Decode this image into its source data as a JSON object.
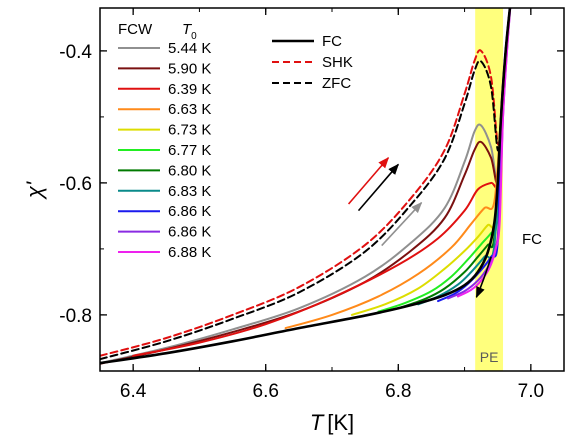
{
  "chart_data": {
    "type": "line",
    "xlabel_symbol": "T",
    "xlabel_unit": "[K]",
    "ylabel": "χ'",
    "xlim": [
      6.35,
      7.05
    ],
    "ylim": [
      -0.885,
      -0.335
    ],
    "xticks": [
      6.4,
      6.6,
      6.8,
      7.0
    ],
    "yticks": [
      -0.8,
      -0.6,
      -0.4
    ],
    "xtick_labels": [
      "6.4",
      "6.6",
      "6.8",
      "7.0"
    ],
    "ytick_labels": [
      "-0.8",
      "-0.6",
      "-0.4"
    ],
    "grid": false,
    "pe_band": {
      "x_range": [
        6.916,
        6.958
      ],
      "label": "PE",
      "color": "#ffff66"
    },
    "fcw_legend": {
      "header_left": "FCW",
      "header_right_symbol": "T",
      "header_right_sub": "0",
      "entries": [
        {
          "label": "5.44 K",
          "color": "#909090"
        },
        {
          "label": "5.90 K",
          "color": "#7a1010"
        },
        {
          "label": "6.39 K",
          "color": "#e01010"
        },
        {
          "label": "6.63 K",
          "color": "#ff8a1a"
        },
        {
          "label": "6.73 K",
          "color": "#dddd00"
        },
        {
          "label": "6.77 K",
          "color": "#22ee22"
        },
        {
          "label": "6.80 K",
          "color": "#007a00"
        },
        {
          "label": "6.83 K",
          "color": "#0a8a8a"
        },
        {
          "label": "6.86 K",
          "color": "#1a1aee"
        },
        {
          "label": "6.86 K",
          "color": "#8a2be2"
        },
        {
          "label": "6.88 K",
          "color": "#ee22ee"
        }
      ]
    },
    "protocol_legend": [
      {
        "label": "FC",
        "color": "#000000",
        "dash": "solid"
      },
      {
        "label": "SHK",
        "color": "#e01010",
        "dash": "dashed"
      },
      {
        "label": "ZFC",
        "color": "#000000",
        "dash": "dashed"
      }
    ],
    "fc_annotation": "FC",
    "series": [
      {
        "name": "FC",
        "color": "#000000",
        "dash": "solid",
        "width": 2.6,
        "x": [
          6.35,
          6.45,
          6.55,
          6.65,
          6.75,
          6.82,
          6.87,
          6.9,
          6.92,
          6.935,
          6.945,
          6.95,
          6.955,
          6.962,
          6.97
        ],
        "y": [
          -0.873,
          -0.858,
          -0.84,
          -0.82,
          -0.801,
          -0.785,
          -0.77,
          -0.755,
          -0.735,
          -0.705,
          -0.66,
          -0.6,
          -0.5,
          -0.4,
          -0.32
        ]
      },
      {
        "name": "SHK",
        "color": "#e01010",
        "dash": "dashed",
        "width": 2,
        "x": [
          6.35,
          6.45,
          6.55,
          6.65,
          6.75,
          6.82,
          6.87,
          6.9,
          6.915,
          6.925,
          6.94,
          6.95,
          6.955,
          6.962,
          6.97
        ],
        "y": [
          -0.862,
          -0.835,
          -0.8,
          -0.758,
          -0.694,
          -0.622,
          -0.55,
          -0.465,
          -0.415,
          -0.4,
          -0.44,
          -0.54,
          -0.5,
          -0.4,
          -0.32
        ]
      },
      {
        "name": "ZFC",
        "color": "#000000",
        "dash": "dashed",
        "width": 2,
        "x": [
          6.35,
          6.45,
          6.55,
          6.65,
          6.75,
          6.82,
          6.87,
          6.9,
          6.915,
          6.925,
          6.94,
          6.95,
          6.955,
          6.962,
          6.97
        ],
        "y": [
          -0.867,
          -0.84,
          -0.806,
          -0.766,
          -0.704,
          -0.632,
          -0.563,
          -0.48,
          -0.43,
          -0.416,
          -0.455,
          -0.55,
          -0.5,
          -0.4,
          -0.32
        ]
      },
      {
        "name": "5.44 K",
        "color": "#909090",
        "dash": "solid",
        "width": 2,
        "x": [
          6.35,
          6.45,
          6.55,
          6.65,
          6.75,
          6.82,
          6.87,
          6.9,
          6.915,
          6.925,
          6.94,
          6.95,
          6.955,
          6.962,
          6.97
        ],
        "y": [
          -0.873,
          -0.85,
          -0.822,
          -0.79,
          -0.742,
          -0.69,
          -0.638,
          -0.568,
          -0.522,
          -0.513,
          -0.546,
          -0.6,
          -0.5,
          -0.4,
          -0.32
        ]
      },
      {
        "name": "5.90 K",
        "color": "#7a1010",
        "dash": "solid",
        "width": 2,
        "x": [
          6.35,
          6.45,
          6.55,
          6.65,
          6.75,
          6.82,
          6.87,
          6.9,
          6.915,
          6.925,
          6.94,
          6.95,
          6.955,
          6.962,
          6.97
        ],
        "y": [
          -0.874,
          -0.852,
          -0.826,
          -0.795,
          -0.75,
          -0.702,
          -0.653,
          -0.588,
          -0.55,
          -0.538,
          -0.562,
          -0.6,
          -0.5,
          -0.4,
          -0.32
        ]
      },
      {
        "name": "6.39 K",
        "color": "#e01010",
        "dash": "solid",
        "width": 2,
        "x": [
          6.4,
          6.5,
          6.6,
          6.7,
          6.8,
          6.86,
          6.9,
          6.92,
          6.94,
          6.95,
          6.955,
          6.962,
          6.97
        ],
        "y": [
          -0.862,
          -0.842,
          -0.814,
          -0.774,
          -0.724,
          -0.684,
          -0.642,
          -0.61,
          -0.6,
          -0.6,
          -0.5,
          -0.4,
          -0.32
        ]
      },
      {
        "name": "6.63 K",
        "color": "#ff8a1a",
        "dash": "solid",
        "width": 2,
        "x": [
          6.63,
          6.7,
          6.77,
          6.83,
          6.88,
          6.91,
          6.93,
          6.945,
          6.955,
          6.962,
          6.97
        ],
        "y": [
          -0.82,
          -0.8,
          -0.772,
          -0.738,
          -0.698,
          -0.662,
          -0.638,
          -0.628,
          -0.5,
          -0.4,
          -0.32
        ]
      },
      {
        "name": "6.73 K",
        "color": "#dddd00",
        "dash": "solid",
        "width": 2,
        "x": [
          6.73,
          6.78,
          6.83,
          6.87,
          6.9,
          6.92,
          6.935,
          6.948,
          6.955,
          6.962,
          6.97
        ],
        "y": [
          -0.8,
          -0.784,
          -0.76,
          -0.73,
          -0.703,
          -0.682,
          -0.664,
          -0.655,
          -0.5,
          -0.4,
          -0.32
        ]
      },
      {
        "name": "6.77 K",
        "color": "#22ee22",
        "dash": "solid",
        "width": 2,
        "x": [
          6.77,
          6.81,
          6.85,
          6.88,
          6.905,
          6.925,
          6.94,
          6.948,
          6.955,
          6.962,
          6.97
        ],
        "y": [
          -0.795,
          -0.782,
          -0.764,
          -0.742,
          -0.716,
          -0.693,
          -0.676,
          -0.662,
          -0.5,
          -0.4,
          -0.32
        ]
      },
      {
        "name": "6.80 K",
        "color": "#007a00",
        "dash": "solid",
        "width": 2,
        "x": [
          6.8,
          6.84,
          6.87,
          6.9,
          6.92,
          6.935,
          6.945,
          6.955,
          6.962,
          6.97
        ],
        "y": [
          -0.79,
          -0.776,
          -0.76,
          -0.735,
          -0.712,
          -0.694,
          -0.68,
          -0.5,
          -0.4,
          -0.32
        ]
      },
      {
        "name": "6.83 K",
        "color": "#0a8a8a",
        "dash": "solid",
        "width": 2,
        "x": [
          6.83,
          6.86,
          6.89,
          6.91,
          6.93,
          6.945,
          6.955,
          6.962,
          6.97
        ],
        "y": [
          -0.784,
          -0.772,
          -0.754,
          -0.735,
          -0.712,
          -0.694,
          -0.5,
          -0.4,
          -0.32
        ]
      },
      {
        "name": "6.86 K",
        "color": "#1a1aee",
        "dash": "solid",
        "width": 2,
        "x": [
          6.86,
          6.885,
          6.905,
          6.925,
          6.94,
          6.95,
          6.955,
          6.962,
          6.97
        ],
        "y": [
          -0.779,
          -0.768,
          -0.753,
          -0.732,
          -0.712,
          -0.69,
          -0.5,
          -0.4,
          -0.32
        ]
      },
      {
        "name": "6.86 K",
        "color": "#8a2be2",
        "dash": "solid",
        "width": 2,
        "x": [
          6.875,
          6.9,
          6.92,
          6.935,
          6.945,
          6.952,
          6.958,
          6.964,
          6.97
        ],
        "y": [
          -0.775,
          -0.764,
          -0.748,
          -0.728,
          -0.705,
          -0.66,
          -0.5,
          -0.4,
          -0.32
        ]
      },
      {
        "name": "6.88 K",
        "color": "#ee22ee",
        "dash": "solid",
        "width": 2,
        "x": [
          6.89,
          6.91,
          6.925,
          6.938,
          6.947,
          6.953,
          6.958,
          6.964,
          6.97
        ],
        "y": [
          -0.772,
          -0.762,
          -0.748,
          -0.728,
          -0.7,
          -0.66,
          -0.5,
          -0.4,
          -0.32
        ]
      }
    ],
    "arrows": [
      {
        "name": "red-warming-arrow",
        "color": "#e01010",
        "from": [
          6.725,
          -0.632
        ],
        "to": [
          6.785,
          -0.562
        ]
      },
      {
        "name": "black-warming-arrow",
        "color": "#000000",
        "from": [
          6.74,
          -0.642
        ],
        "to": [
          6.8,
          -0.572
        ]
      },
      {
        "name": "gray-warming-arrow",
        "color": "#909090",
        "from": [
          6.775,
          -0.695
        ],
        "to": [
          6.835,
          -0.63
        ]
      }
    ],
    "fc_curved_arrow": {
      "name": "fc-cooling-arrow",
      "points": [
        [
          6.94,
          -0.712
        ],
        [
          6.93,
          -0.745
        ],
        [
          6.918,
          -0.773
        ]
      ]
    }
  }
}
